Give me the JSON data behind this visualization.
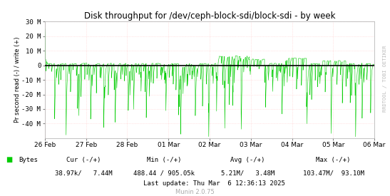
{
  "title": "Disk throughput for /dev/ceph-block-sdi/block-sdi - by week",
  "ylabel": "Pr second read (-) / write (+)",
  "watermark": "RRDTOOL / TOBI OETIKER",
  "munin_version": "Munin 2.0.75",
  "bg_color": "#FFFFFF",
  "plot_bg_color": "#FFFFFF",
  "grid_color": "#FFCCCC",
  "line_color": "#00CC00",
  "zero_line_color": "#000000",
  "ylim": [
    -50,
    30
  ],
  "yticks": [
    -40,
    -30,
    -20,
    -10,
    0,
    10,
    20,
    30
  ],
  "ytick_labels": [
    "-40 M",
    "-30 M",
    "-20 M",
    "-10 M",
    "0",
    "10 M",
    "20 M",
    "30 M"
  ],
  "x_labels": [
    "26 Feb",
    "27 Feb",
    "28 Feb",
    "01 Mar",
    "02 Mar",
    "03 Mar",
    "04 Mar",
    "05 Mar",
    "06 Mar"
  ],
  "legend_label": "Bytes",
  "legend_color": "#00CC00",
  "cur_label": "Cur (-/+)",
  "min_label": "Min (-/+)",
  "avg_label": "Avg (-/+)",
  "max_label": "Max (-/+)",
  "cur_value": "38.97k/   7.44M",
  "min_value": "488.44 / 905.05k",
  "avg_value": "5.21M/   3.48M",
  "max_value": "103.47M/  93.10M",
  "last_update": "Last update: Thu Mar  6 12:36:13 2025",
  "n_points": 2016,
  "seed": 42
}
